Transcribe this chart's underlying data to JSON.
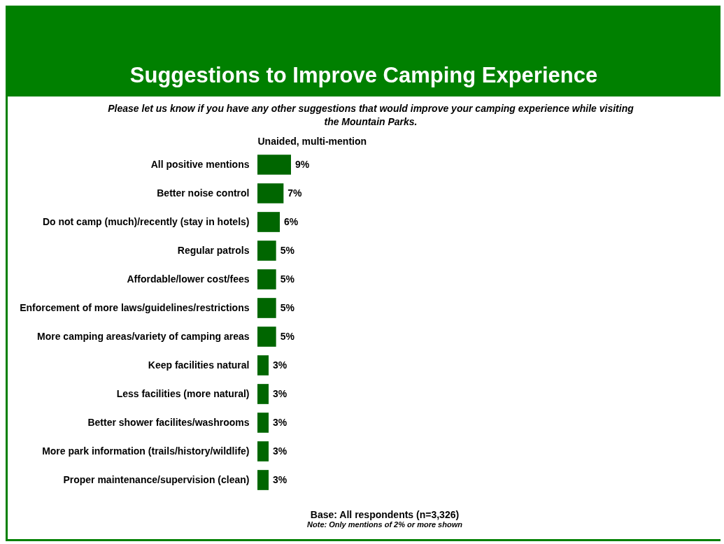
{
  "chart_data": {
    "type": "bar",
    "orientation": "horizontal",
    "title": "Suggestions to Improve Camping Experience",
    "subtitle": "Please let us know if you have any other suggestions that would improve your camping experience while visiting the Mountain Parks.",
    "xlabel": "Unaided, multi-mention",
    "categories": [
      "All positive mentions",
      "Better noise control",
      "Do not camp (much)/recently (stay in hotels)",
      "Regular patrols",
      "Affordable/lower cost/fees",
      "Enforcement of more laws/guidelines/restrictions",
      "More camping areas/variety of camping areas",
      "Keep facilities natural",
      "Less facilities (more natural)",
      "Better shower facilites/washrooms",
      "More park information (trails/history/wildlife)",
      "Proper maintenance/supervision (clean)"
    ],
    "values": [
      9,
      7,
      6,
      5,
      5,
      5,
      5,
      3,
      3,
      3,
      3,
      3
    ],
    "value_labels": [
      "9%",
      "7%",
      "6%",
      "5%",
      "5%",
      "5%",
      "5%",
      "3%",
      "3%",
      "3%",
      "3%",
      "3%"
    ],
    "color": "#006600",
    "tick_labels": "y",
    "annotations": [
      "Base: All respondents (n=3,326)",
      "Note: Only mentions of 2% or more shown"
    ]
  }
}
